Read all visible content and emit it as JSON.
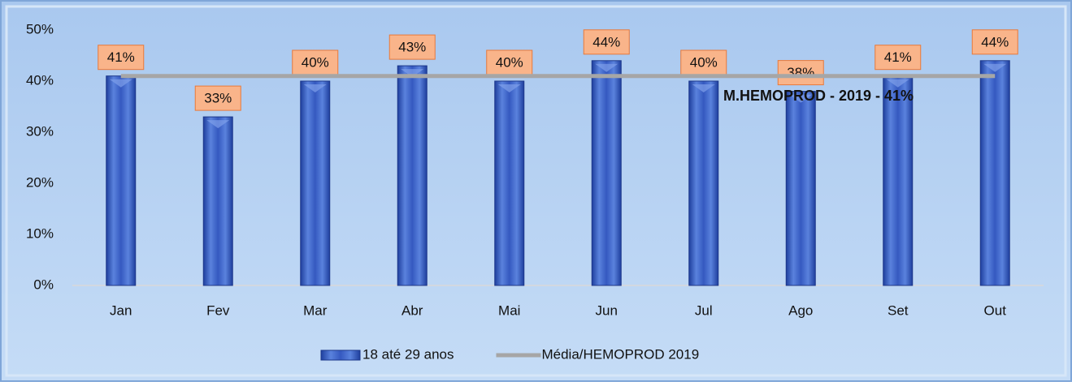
{
  "chart_data": {
    "type": "bar",
    "categories": [
      "Jan",
      "Fev",
      "Mar",
      "Abr",
      "Mai",
      "Jun",
      "Jul",
      "Ago",
      "Set",
      "Out"
    ],
    "series": [
      {
        "name": "18 até 29 anos",
        "type": "bar",
        "color": "#3559c0",
        "values": [
          41,
          33,
          40,
          43,
          40,
          44,
          40,
          38,
          41,
          44
        ],
        "value_labels": [
          "41%",
          "33%",
          "40%",
          "43%",
          "40%",
          "44%",
          "40%",
          "38%",
          "41%",
          "44%"
        ]
      },
      {
        "name": "Média/HEMOPROD 2019",
        "type": "line",
        "color": "#a6a6a6",
        "values": [
          41,
          41,
          41,
          41,
          41,
          41,
          41,
          41,
          41,
          41
        ]
      }
    ],
    "annotation": "M.HEMOPROD - 2019 - 41%",
    "ylim": [
      0,
      50
    ],
    "yticks": [
      {
        "value": 0,
        "label": "0%"
      },
      {
        "value": 10,
        "label": "10%"
      },
      {
        "value": 20,
        "label": "20%"
      },
      {
        "value": 30,
        "label": "30%"
      },
      {
        "value": 40,
        "label": "40%"
      },
      {
        "value": 50,
        "label": "50%"
      }
    ],
    "grid": false
  }
}
